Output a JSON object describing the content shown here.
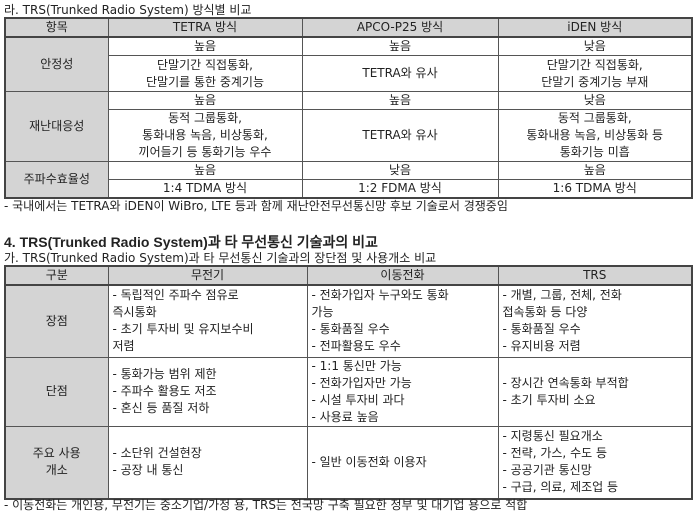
{
  "section_ra": {
    "title": "라. TRS(Trunked Radio System) 방식별 비교",
    "headers": [
      "항목",
      "TETRA 방식",
      "APCO-P25 방식",
      "iDEN 방식"
    ],
    "rows": [
      {
        "label": "안정성",
        "level": [
          "높음",
          "높음",
          "낮음"
        ],
        "detail": [
          "단말기간 직접통화,\n단말기를 통한 중계기능",
          "TETRA와 유사",
          "단말기간 직접통화,\n단말기 중계기능 부재"
        ]
      },
      {
        "label": "재난대응성",
        "level": [
          "높음",
          "높음",
          "낮음"
        ],
        "detail": [
          "동적 그룹통화,\n통화내용 녹음, 비상통화,\n끼어들기 등 통화기능 우수",
          "TETRA와 유사",
          "동적 그룹통화,\n통화내용 녹음, 비상통화 등\n통화기능 미흡"
        ]
      },
      {
        "label": "주파수효율성",
        "level": [
          "높음",
          "낮음",
          "높음"
        ],
        "detail": [
          "1:4 TDMA 방식",
          "1:2 FDMA 방식",
          "1:6 TDMA 방식"
        ]
      }
    ],
    "note": "- 국내에서는 TETRA와 iDEN이 WiBro, LTE 등과 함께 재난안전무선통신망 후보 기술로서 경쟁중임"
  },
  "section4": {
    "title": "4. TRS(Trunked Radio System)과 타 무선통신 기술과의 비교",
    "subtitle": "가. TRS(Trunked Radio System)과 타 무선통신 기술과의 장단점 및 사용개소 비교",
    "headers": [
      "구분",
      "무전기",
      "이동전화",
      "TRS"
    ],
    "rows": [
      {
        "label": "장점",
        "cells": [
          "- 독립적인 주파수 점유로\n즉시통화\n- 초기 투자비 및 유지보수비\n저렴",
          "- 전화가입자 누구와도 통화\n가능\n- 통화품질 우수\n- 전파활용도 우수",
          "- 개별, 그룹, 전체, 전화\n접속통화 등 다양\n- 통화품질 우수\n- 유지비용 저렴"
        ]
      },
      {
        "label": "단점",
        "cells": [
          "- 통화가능 범위 제한\n- 주파수 활용도 저조\n- 혼신 등 품질 저하",
          "- 1:1 통신만 가능\n- 전화가입자만 가능\n- 시설 투자비 과다\n- 사용료 높음",
          "- 장시간 연속통화 부적합\n- 초기 투자비 소요"
        ]
      },
      {
        "label": "주요 사용\n개소",
        "cells": [
          "- 소단위 건설현장\n- 공장 내 통신",
          "- 일반 이동전화 이용자",
          "- 지령통신 필요개소\n- 전략, 가스, 수도 등\n- 공공기관 통신망\n- 구급, 의료, 제조업 등"
        ]
      }
    ],
    "note": "- 이동전화는 개인용, 무전기는 중소기업/가정 용, TRS는 전국망 구축 필요한 정부 및 대기업 용으로 적합"
  }
}
